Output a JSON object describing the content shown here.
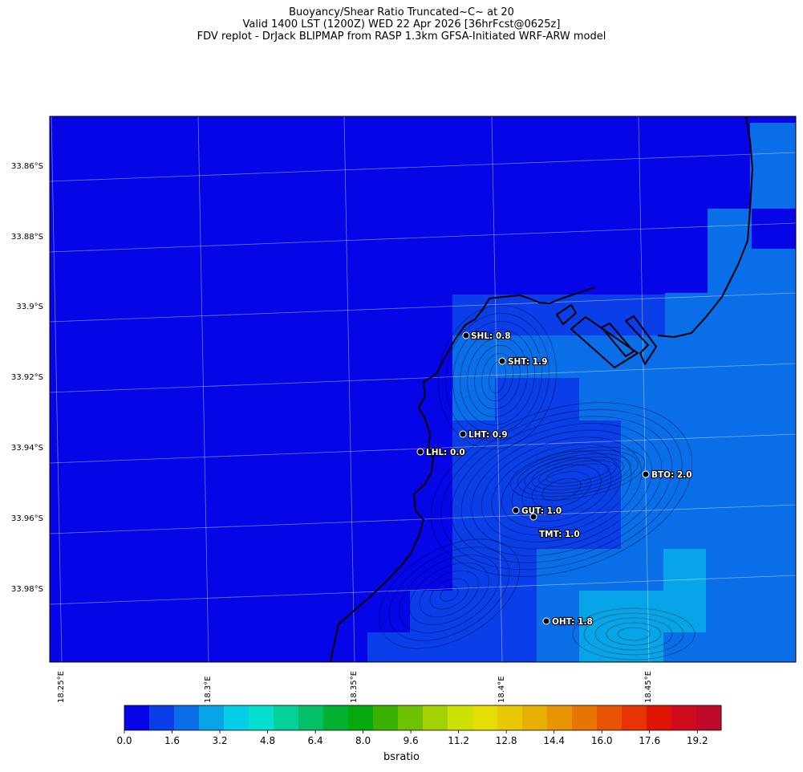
{
  "title": {
    "line1": "Buoyancy/Shear Ratio Truncated~C~    at 20",
    "line2": "Valid 1400 LST (1200Z) WED 22 Apr 2026 [36hrFcst@0625z]",
    "line3": "FDV replot - DrJack BLIPMAP from RASP 1.3km GFSA-Initiated WRF-ARW model"
  },
  "latitude_labels": [
    "33.86°S",
    "33.88°S",
    "33.9°S",
    "33.92°S",
    "33.94°S",
    "33.96°S",
    "33.98°S"
  ],
  "longitude_labels": [
    "18.25°E",
    "18.3°E",
    "18.35°E",
    "18.4°E",
    "18.45°E"
  ],
  "stations": [
    {
      "label": "SHL: 0.8"
    },
    {
      "label": "SHT: 1.9"
    },
    {
      "label": "LHT: 0.9"
    },
    {
      "label": "LHL: 0.0"
    },
    {
      "label": "BTO: 2.0"
    },
    {
      "label": "GUT: 1.0"
    },
    {
      "label": "TMT: 1.0"
    },
    {
      "label": "OHT: 1.8"
    }
  ],
  "colorbar": {
    "label": "bsratio",
    "ticks": [
      "0.0",
      "1.6",
      "3.2",
      "4.8",
      "6.4",
      "8.0",
      "9.6",
      "11.2",
      "12.8",
      "14.4",
      "16.0",
      "17.6",
      "19.2"
    ],
    "colors": [
      "#0505e8",
      "#0a3ee8",
      "#0a6ee8",
      "#08a4e8",
      "#05cfe8",
      "#04dfcf",
      "#04d09a",
      "#03c066",
      "#03b030",
      "#06aa0f",
      "#3bb202",
      "#6ec202",
      "#a3d102",
      "#cde102",
      "#e6dd02",
      "#e8c803",
      "#e8b003",
      "#e89403",
      "#e87404",
      "#e85404",
      "#e83404",
      "#e01404",
      "#d00c1c",
      "#c00a2a"
    ]
  },
  "field_colors": {
    "level0": "#0505e8",
    "level1": "#0a3ee8",
    "level2": "#0a6ee8",
    "level3": "#08a4e8"
  }
}
